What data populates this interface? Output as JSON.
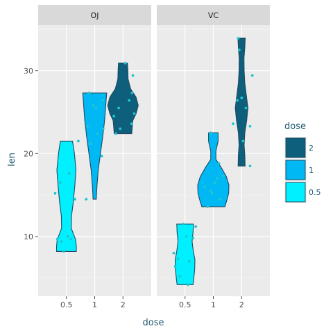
{
  "chart_data": {
    "type": "violin",
    "xlabel": "dose",
    "ylabel": "len",
    "ylim": [
      2.8,
      35.5
    ],
    "yticks": [
      10,
      20,
      30
    ],
    "x_categories": [
      "0.5",
      "1",
      "2"
    ],
    "grid": true,
    "legend_position": "right",
    "legend": {
      "title": "dose",
      "entries": [
        {
          "label": "2",
          "color": "#0d5f7c"
        },
        {
          "label": "1",
          "color": "#00b8f4"
        },
        {
          "label": "0.5",
          "color": "#00f0ff"
        }
      ]
    },
    "outline_color": "#1f4a5f",
    "point_color": "#1fc6cf",
    "facets": [
      {
        "strip": "OJ",
        "groups": [
          {
            "dose": "0.5",
            "fill": "#00f0ff",
            "min": 8.2,
            "max": 21.5,
            "profile": [
              [
                8.2,
                0.62
              ],
              [
                8.8,
                0.62
              ],
              [
                9.6,
                0.58
              ],
              [
                11,
                0.3
              ],
              [
                12.5,
                0.32
              ],
              [
                14,
                0.42
              ],
              [
                16,
                0.52
              ],
              [
                18,
                0.6
              ],
              [
                20,
                0.5
              ],
              [
                21.5,
                0.38
              ]
            ],
            "points": [
              [
                -0.32,
                9.7
              ],
              [
                -0.22,
                16.5
              ],
              [
                -0.18,
                9.4
              ],
              [
                -0.1,
                8.2
              ],
              [
                0.16,
                9.7
              ],
              [
                0.3,
                14.5
              ],
              [
                0.42,
                21.5
              ],
              [
                0.1,
                17.6
              ],
              [
                -0.4,
                15.2
              ],
              [
                0.05,
                10.0
              ]
            ]
          },
          {
            "dose": "1",
            "fill": "#00b8f4",
            "min": 14.5,
            "max": 27.3,
            "profile": [
              [
                14.5,
                0.1
              ],
              [
                16,
                0.14
              ],
              [
                18,
                0.22
              ],
              [
                20,
                0.36
              ],
              [
                22,
                0.5
              ],
              [
                24,
                0.62
              ],
              [
                26,
                0.7
              ],
              [
                27.3,
                0.75
              ]
            ],
            "points": [
              [
                -0.3,
                14.5
              ],
              [
                -0.25,
                23.3
              ],
              [
                -0.15,
                21.2
              ],
              [
                0.25,
                19.7
              ],
              [
                0.05,
                25.5
              ],
              [
                0.28,
                26.4
              ],
              [
                -0.2,
                27.3
              ],
              [
                0.1,
                22.4
              ],
              [
                0.3,
                23.0
              ],
              [
                -0.05,
                25.8
              ]
            ]
          },
          {
            "dose": "2",
            "fill": "#0d5f7c",
            "min": 22.4,
            "max": 30.9,
            "profile": [
              [
                22.4,
                0.55
              ],
              [
                23.2,
                0.58
              ],
              [
                24.0,
                0.62
              ],
              [
                24.8,
                0.82
              ],
              [
                25.8,
                0.96
              ],
              [
                26.8,
                0.82
              ],
              [
                27.8,
                0.48
              ],
              [
                29,
                0.32
              ],
              [
                30.2,
                0.3
              ],
              [
                30.9,
                0.28
              ]
            ],
            "points": [
              [
                -0.25,
                22.4
              ],
              [
                -0.1,
                23.0
              ],
              [
                0.3,
                23.6
              ],
              [
                -0.32,
                24.5
              ],
              [
                -0.15,
                25.5
              ],
              [
                0.22,
                26.4
              ],
              [
                0.32,
                27.3
              ],
              [
                0.35,
                29.4
              ],
              [
                0.08,
                30.9
              ],
              [
                0.4,
                24.8
              ]
            ]
          }
        ]
      },
      {
        "strip": "VC",
        "groups": [
          {
            "dose": "0.5",
            "fill": "#00f0ff",
            "min": 4.2,
            "max": 11.5,
            "profile": [
              [
                4.2,
                0.5
              ],
              [
                5,
                0.55
              ],
              [
                6,
                0.6
              ],
              [
                7.2,
                0.62
              ],
              [
                8.2,
                0.52
              ],
              [
                9.4,
                0.44
              ],
              [
                10.5,
                0.5
              ],
              [
                11.5,
                0.52
              ]
            ],
            "points": [
              [
                -0.35,
                6.4
              ],
              [
                -0.25,
                7.3
              ],
              [
                -0.18,
                5.2
              ],
              [
                0.1,
                4.2
              ],
              [
                0.38,
                11.2
              ],
              [
                -0.06,
                11.5
              ],
              [
                0.15,
                7.0
              ],
              [
                0.28,
                9.8
              ],
              [
                -0.4,
                8.0
              ],
              [
                0.05,
                10.0
              ]
            ]
          },
          {
            "dose": "1",
            "fill": "#00b8f4",
            "min": 13.6,
            "max": 22.5,
            "profile": [
              [
                13.6,
                0.72
              ],
              [
                14.2,
                0.82
              ],
              [
                15.2,
                0.96
              ],
              [
                16.2,
                0.98
              ],
              [
                17.2,
                0.82
              ],
              [
                18.3,
                0.5
              ],
              [
                19.3,
                0.16
              ],
              [
                20.3,
                0.16
              ],
              [
                21.5,
                0.3
              ],
              [
                22.5,
                0.3
              ]
            ],
            "points": [
              [
                -0.2,
                13.6
              ],
              [
                0.25,
                14.5
              ],
              [
                -0.05,
                15.2
              ],
              [
                0.05,
                16.5
              ],
              [
                0.35,
                17.3
              ],
              [
                -0.1,
                15.5
              ],
              [
                -0.1,
                22.5
              ],
              [
                0.2,
                18.8
              ],
              [
                -0.3,
                16.0
              ],
              [
                0.15,
                17.0
              ]
            ]
          },
          {
            "dose": "2",
            "fill": "#0d5f7c",
            "min": 18.5,
            "max": 33.9,
            "profile": [
              [
                18.5,
                0.22
              ],
              [
                19.8,
                0.2
              ],
              [
                21,
                0.16
              ],
              [
                22.5,
                0.2
              ],
              [
                24,
                0.32
              ],
              [
                25.5,
                0.4
              ],
              [
                27,
                0.3
              ],
              [
                28.5,
                0.2
              ],
              [
                30,
                0.16
              ],
              [
                31.5,
                0.15
              ],
              [
                32.8,
                0.2
              ],
              [
                33.9,
                0.23
              ]
            ],
            "points": [
              [
                0.3,
                18.5
              ],
              [
                0.05,
                21.5
              ],
              [
                -0.3,
                23.6
              ],
              [
                0.3,
                23.3
              ],
              [
                0.15,
                25.5
              ],
              [
                -0.15,
                26.4
              ],
              [
                0.38,
                29.4
              ],
              [
                -0.08,
                32.5
              ],
              [
                -0.12,
                33.9
              ],
              [
                0.0,
                26.7
              ]
            ]
          }
        ]
      }
    ]
  }
}
